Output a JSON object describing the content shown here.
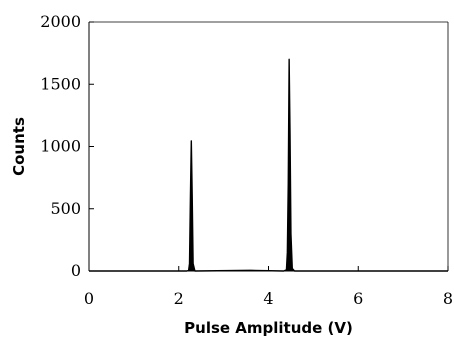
{
  "chart_data": {
    "type": "line",
    "title": "",
    "xlabel": "Pulse Amplitude (V)",
    "ylabel": "Counts",
    "xlim": [
      0,
      8
    ],
    "ylim": [
      0,
      2000
    ],
    "x_ticks": [
      0,
      2,
      4,
      6,
      8
    ],
    "y_ticks": [
      0,
      500,
      1000,
      1500,
      2000
    ],
    "x_tick_labels": [
      "0",
      "2",
      "4",
      "6",
      "8"
    ],
    "y_tick_labels": [
      "0",
      "500",
      "1000",
      "1500",
      "2000"
    ],
    "grid": false,
    "legend": "none",
    "line_color": "#000000",
    "series": [
      {
        "x": [
          0,
          2.18,
          2.22,
          2.24,
          2.26,
          2.28,
          2.3,
          2.32,
          2.36,
          3.6,
          4.34,
          4.4,
          4.42,
          4.44,
          4.46,
          4.48,
          4.5,
          4.53,
          4.58,
          5.5,
          8
        ],
        "y": [
          0,
          0,
          5,
          60,
          600,
          1045,
          600,
          60,
          0,
          5,
          0,
          10,
          150,
          700,
          1700,
          1100,
          300,
          20,
          0,
          0,
          0
        ]
      }
    ]
  }
}
